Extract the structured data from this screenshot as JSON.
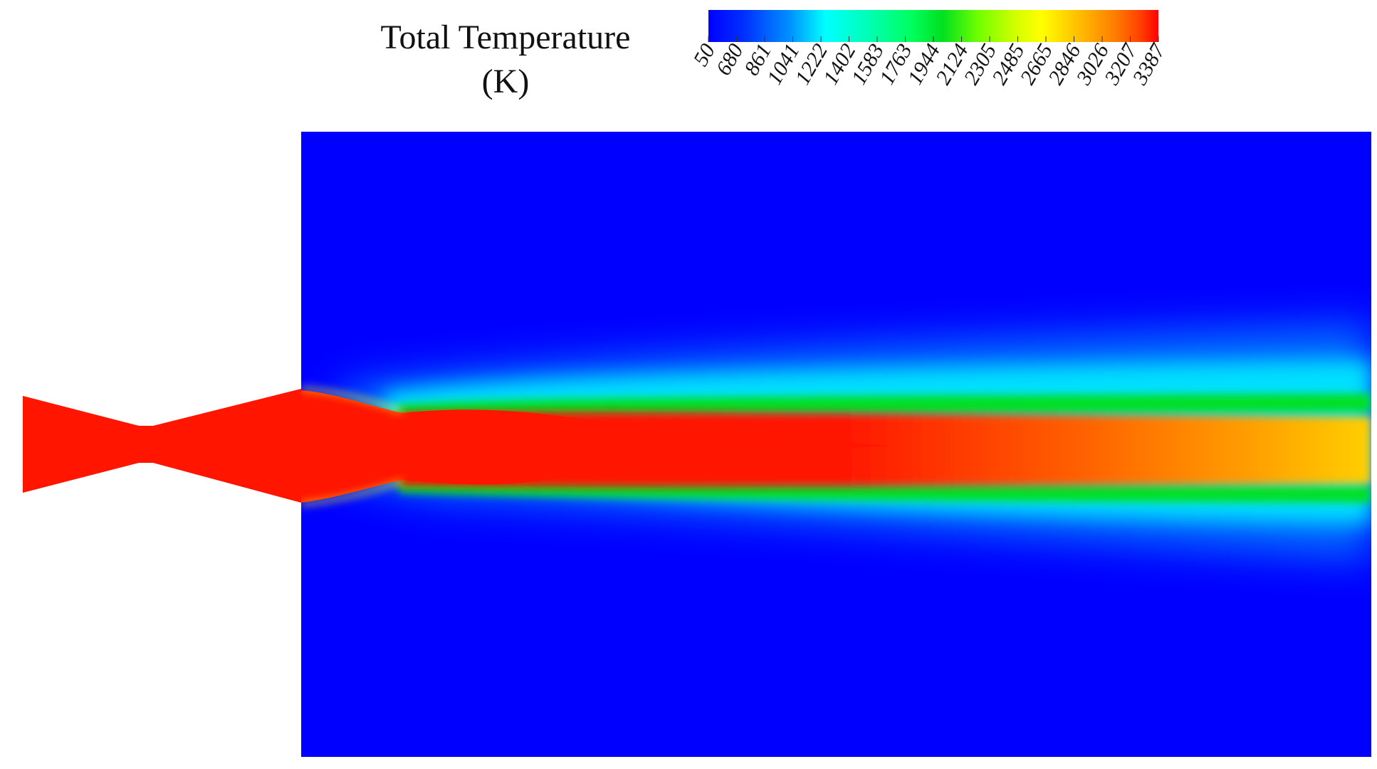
{
  "legend": {
    "title_line1": "Total Temperature",
    "title_line2": "(K)",
    "ticks": [
      "50",
      "680",
      "861",
      "1041",
      "1222",
      "1402",
      "1583",
      "1763",
      "1944",
      "2124",
      "2305",
      "2485",
      "2665",
      "2846",
      "3026",
      "3207",
      "3387"
    ],
    "colors": [
      "#0000ff",
      "#0040ff",
      "#0080ff",
      "#00c0ff",
      "#00ffff",
      "#00ffc0",
      "#00ff80",
      "#00e000",
      "#40ff00",
      "#80ff00",
      "#c0ff00",
      "#ffff00",
      "#ffd000",
      "#ffa000",
      "#ff7000",
      "#ff4000",
      "#ff0000"
    ]
  },
  "contour": {
    "ambient_color": "#0000ff",
    "core_color": "#ff1500",
    "colormap": [
      "#0000ff",
      "#0060ff",
      "#00c0ff",
      "#00ffff",
      "#00ff80",
      "#00e000",
      "#80ff00",
      "#ffff00",
      "#ffc000",
      "#ff8000",
      "#ff4000",
      "#ff1000"
    ]
  }
}
